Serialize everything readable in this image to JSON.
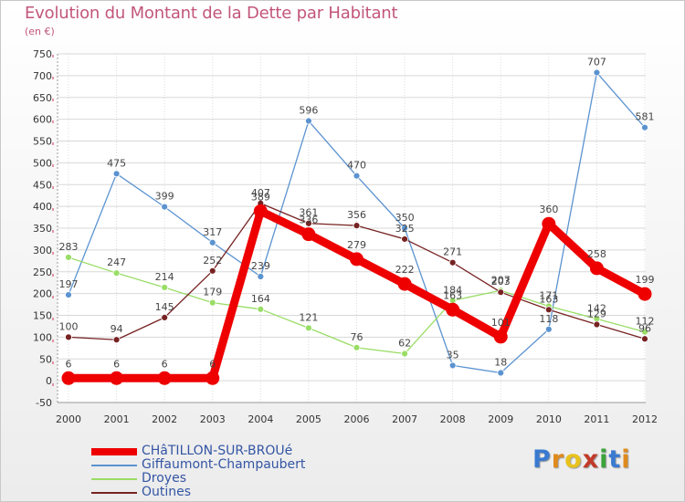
{
  "header": {
    "title": "Evolution du Montant de la Dette par Habitant",
    "unit": "(en €)"
  },
  "logo": {
    "text": "Proxiti",
    "letters": [
      "P",
      "r",
      "o",
      "x",
      "i",
      "t",
      "i"
    ],
    "colors": [
      "#3a7ad0",
      "#e08a1e",
      "#e8c21c",
      "#c23a2a",
      "#3aa33a",
      "#3a7ad0",
      "#e08a1e"
    ]
  },
  "chart_data": {
    "type": "line",
    "x": [
      "2000",
      "2001",
      "2002",
      "2003",
      "2004",
      "2005",
      "2006",
      "2007",
      "2008",
      "2009",
      "2010",
      "2011",
      "2012"
    ],
    "ylim": [
      -50,
      750
    ],
    "yticks": [
      -50,
      0,
      50,
      100,
      150,
      200,
      250,
      300,
      350,
      400,
      450,
      500,
      550,
      600,
      650,
      700,
      750
    ],
    "grid": true,
    "legend_position": "bottom-left",
    "series": [
      {
        "name": "CHâTILLON-SUR-BROUé",
        "color": "#ee0000",
        "values": [
          6,
          6,
          6,
          6,
          389,
          336,
          279,
          222,
          163,
          101,
          360,
          258,
          199
        ],
        "labels": [
          "6",
          "6",
          "6",
          "6",
          "389",
          "336",
          "279",
          "222",
          "163",
          "101",
          "360",
          "258",
          "199"
        ]
      },
      {
        "name": "Giffaumont-Champaubert",
        "color": "#5b93d0",
        "values": [
          197,
          475,
          399,
          317,
          239,
          596,
          470,
          350,
          35,
          18,
          118,
          707,
          581
        ],
        "labels": [
          "197",
          "475",
          "399",
          "317",
          "239",
          "596",
          "470",
          "350",
          "35",
          "18",
          "118",
          "707",
          "581"
        ]
      },
      {
        "name": "Droyes",
        "color": "#99dd66",
        "values": [
          283,
          247,
          214,
          179,
          164,
          121,
          76,
          62,
          184,
          207,
          171,
          142,
          112
        ],
        "labels": [
          "283",
          "247",
          "214",
          "179",
          "164",
          "121",
          "76",
          "62",
          "184",
          "207",
          "171",
          "142",
          "112"
        ]
      },
      {
        "name": "Outines",
        "color": "#772222",
        "values": [
          100,
          94,
          145,
          252,
          407,
          361,
          356,
          325,
          271,
          203,
          163,
          129,
          96
        ],
        "labels": [
          "100",
          "94",
          "145",
          "252",
          "407",
          "361",
          "356",
          "325",
          "271",
          "203",
          "163",
          "129",
          "96"
        ]
      }
    ]
  }
}
